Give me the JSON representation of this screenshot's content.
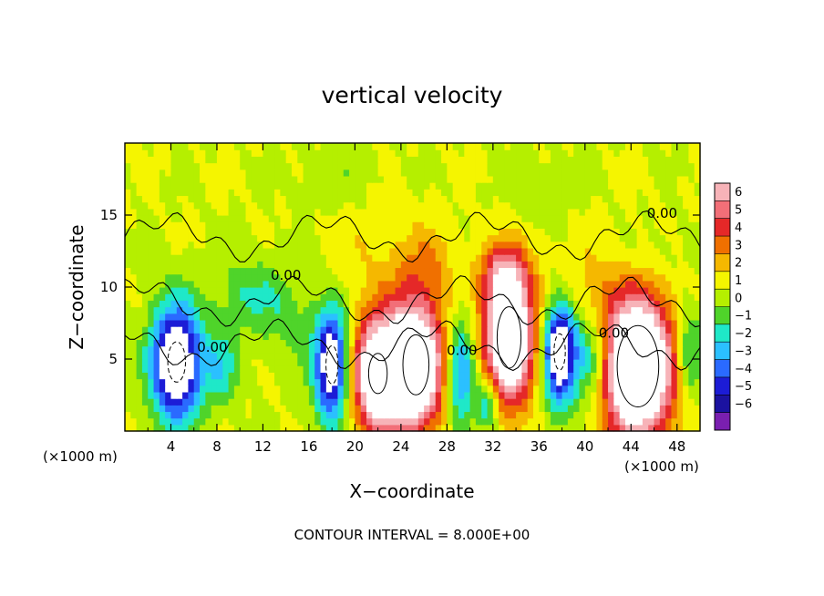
{
  "chart_data": {
    "type": "heatmap",
    "title": "vertical velocity",
    "xlabel": "X−coordinate",
    "ylabel": "Z−coordinate",
    "x_unit_left": "(×1000 m)",
    "x_unit_right": "(×1000 m)",
    "xlim": [
      0,
      50
    ],
    "ylim": [
      0,
      20
    ],
    "x_ticks": [
      4,
      8,
      12,
      16,
      20,
      24,
      28,
      32,
      36,
      40,
      44,
      48
    ],
    "y_ticks": [
      5,
      10,
      15
    ],
    "footnote": "CONTOUR INTERVAL = 8.000E+00",
    "contour_labels": [
      {
        "text": "0.00",
        "x": 46.7,
        "y": 14.8
      },
      {
        "text": "0.00",
        "x": 14.0,
        "y": 10.5
      },
      {
        "text": "0.00",
        "x": 7.6,
        "y": 5.5
      },
      {
        "text": "0.00",
        "x": 42.5,
        "y": 6.5
      },
      {
        "text": "0.00",
        "x": 29.3,
        "y": 5.3
      }
    ],
    "colorbar": {
      "labels": [
        "6",
        "5",
        "4",
        "3",
        "2",
        "1",
        "0",
        "−1",
        "−2",
        "−3",
        "−4",
        "−5",
        "−6"
      ],
      "colors": [
        "#f7b3b8",
        "#f26f78",
        "#e52828",
        "#f07000",
        "#f5b800",
        "#f5f500",
        "#b5ef00",
        "#4fd42a",
        "#1fe8c8",
        "#2bc0ff",
        "#2a6aff",
        "#1c1cd6",
        "#1b12a0",
        "#7a1fb0"
      ]
    },
    "cells": [
      {
        "x": 4.5,
        "y": 4.8,
        "amp": -9,
        "rx": 2.2,
        "ry": 4.0
      },
      {
        "x": 8.5,
        "y": 4.5,
        "amp": -2.5,
        "rx": 1.5,
        "ry": 2.5
      },
      {
        "x": 11.0,
        "y": 9.5,
        "amp": -2.0,
        "rx": 3.0,
        "ry": 2.5
      },
      {
        "x": 14.5,
        "y": 7.5,
        "amp": -1.2,
        "rx": 2.5,
        "ry": 3.0
      },
      {
        "x": 18.0,
        "y": 4.6,
        "amp": -8,
        "rx": 1.5,
        "ry": 3.8
      },
      {
        "x": 22.0,
        "y": 4.0,
        "amp": 9,
        "rx": 2.3,
        "ry": 4.0
      },
      {
        "x": 25.3,
        "y": 4.6,
        "amp": 10,
        "rx": 2.4,
        "ry": 4.4
      },
      {
        "x": 29.2,
        "y": 4.0,
        "amp": -4.5,
        "rx": 1.2,
        "ry": 4.0
      },
      {
        "x": 33.4,
        "y": 6.5,
        "amp": 10,
        "rx": 2.2,
        "ry": 4.5
      },
      {
        "x": 33.0,
        "y": 11.0,
        "amp": 3.5,
        "rx": 2.0,
        "ry": 2.0
      },
      {
        "x": 31.5,
        "y": 2.0,
        "amp": -3.5,
        "rx": 1.0,
        "ry": 2.0
      },
      {
        "x": 37.8,
        "y": 5.5,
        "amp": -8.5,
        "rx": 1.4,
        "ry": 3.6
      },
      {
        "x": 40.5,
        "y": 5.0,
        "amp": -4.0,
        "rx": 1.6,
        "ry": 3.0
      },
      {
        "x": 44.6,
        "y": 4.5,
        "amp": 11,
        "rx": 3.2,
        "ry": 5.0
      },
      {
        "x": 49.0,
        "y": 5.5,
        "amp": -3.5,
        "rx": 1.2,
        "ry": 3.0
      },
      {
        "x": 26.0,
        "y": 11.5,
        "amp": 1.8,
        "rx": 3.0,
        "ry": 3.0
      },
      {
        "x": 20.0,
        "y": 12.5,
        "amp": 0.8,
        "rx": 3.0,
        "ry": 3.0
      },
      {
        "x": 40.0,
        "y": 10.0,
        "amp": 1.2,
        "rx": 3.0,
        "ry": 3.0
      },
      {
        "x": 18.0,
        "y": 17.5,
        "amp": -0.8,
        "rx": 3.0,
        "ry": 2.0
      },
      {
        "x": 36.0,
        "y": 17.0,
        "amp": -0.7,
        "rx": 3.0,
        "ry": 2.0
      },
      {
        "x": 46.0,
        "y": 12.0,
        "amp": -0.8,
        "rx": 3.0,
        "ry": 2.0
      }
    ]
  }
}
